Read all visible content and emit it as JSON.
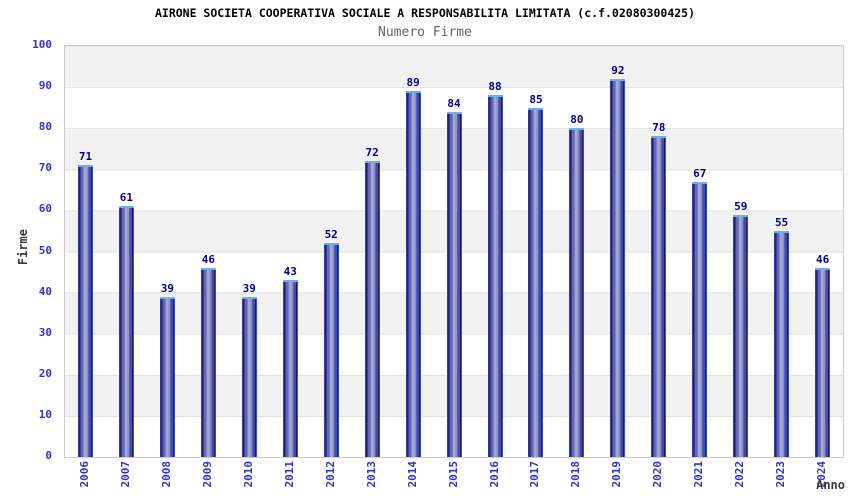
{
  "chart_data": {
    "type": "bar",
    "title": "AIRONE SOCIETA COOPERATIVA SOCIALE A RESPONSABILITA LIMITATA (c.f.02080300425)",
    "subtitle": "Numero Firme",
    "xlabel": "Anno",
    "ylabel": "Firme",
    "categories": [
      "2006",
      "2007",
      "2008",
      "2009",
      "2010",
      "2011",
      "2012",
      "2013",
      "2014",
      "2015",
      "2016",
      "2017",
      "2018",
      "2019",
      "2020",
      "2021",
      "2022",
      "2023",
      "2024"
    ],
    "values": [
      71,
      61,
      39,
      46,
      39,
      43,
      52,
      72,
      89,
      84,
      88,
      85,
      80,
      92,
      78,
      67,
      59,
      55,
      46
    ],
    "ylim": [
      0,
      100
    ],
    "y_ticks": [
      0,
      10,
      20,
      30,
      40,
      50,
      60,
      70,
      80,
      90,
      100
    ],
    "grid": "horizontal-bands-alternating",
    "legend": "none",
    "bar_value_labels": true,
    "colors": {
      "bar_dark": "#15156a",
      "bar_inner": "#23238a",
      "bar_mid": "#6f74b8",
      "bar_light": "#a8aede",
      "bar_top_cap": "#76ace4",
      "bar_right_edge": "#2b50dd",
      "value_label": "#00008b",
      "tick_label": "#3333cc",
      "band_gray": "#f2f2f2",
      "band_white": "#ffffff",
      "grid_line": "#e2e2e2",
      "plot_border": "#cccccc",
      "subtitle_color": "#666666",
      "axis_title_color": "#3a3a3a"
    }
  }
}
